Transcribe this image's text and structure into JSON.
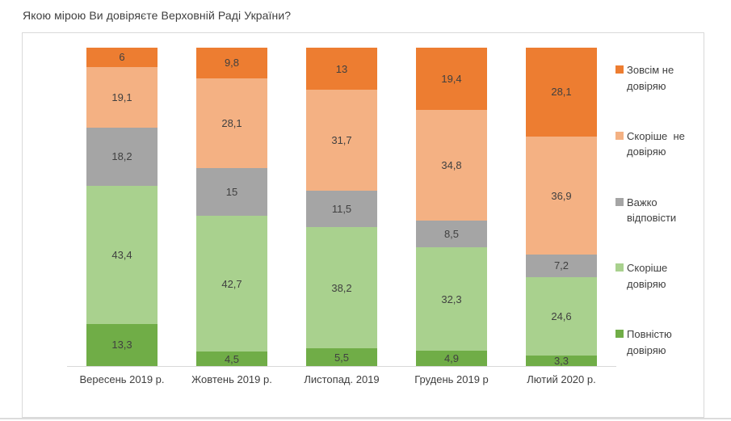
{
  "title": "Якою мірою Ви довіряєте Верховній Раді України?",
  "chart_data": {
    "type": "bar",
    "stacked": true,
    "units": "percent",
    "stack_order": "first-series-on-top",
    "title": "Якою мірою Ви довіряєте Верховній Раді України?",
    "xlabel": "",
    "ylabel": "",
    "ylim": [
      0,
      100
    ],
    "grid": false,
    "legend_position": "right",
    "categories": [
      "Вересень 2019 р.",
      "Жовтень 2019 р.",
      "Листопад. 2019",
      "Грудень 2019 р",
      "Лютий 2020 р."
    ],
    "series": [
      {
        "name": "Зовсім не довіряю",
        "color": "#ED7D31",
        "values": [
          6,
          9.8,
          13,
          19.4,
          28.1
        ]
      },
      {
        "name": "Скоріше не довіряю",
        "color": "#F4B183",
        "values": [
          19.1,
          28.1,
          31.7,
          34.8,
          36.9
        ]
      },
      {
        "name": "Важко відповісти",
        "color": "#A5A5A5",
        "values": [
          18.2,
          15,
          11.5,
          8.5,
          7.2
        ]
      },
      {
        "name": "Скоріше довіряю",
        "color": "#A9D18E",
        "values": [
          43.4,
          42.7,
          38.2,
          32.3,
          24.6
        ]
      },
      {
        "name": "Повністю довіряю",
        "color": "#70AD47",
        "values": [
          13.3,
          4.5,
          5.5,
          4.9,
          3.3
        ]
      }
    ]
  },
  "legend": {
    "items": [
      {
        "label": "Зовсім не\nдовіряю",
        "color": "#ED7D31"
      },
      {
        "label": "Скоріше  не\nдовіряю",
        "color": "#F4B183"
      },
      {
        "label": "Важко\nвідповісти",
        "color": "#A5A5A5"
      },
      {
        "label": "Скоріше\nдовіряю",
        "color": "#A9D18E"
      },
      {
        "label": "Повністю\nдовіряю",
        "color": "#70AD47"
      }
    ]
  },
  "colors": {
    "frame_border": "#d9d9d9",
    "axis_line": "#d9d9d9",
    "label_text": "#404040",
    "title_text": "#3f3f3f"
  }
}
